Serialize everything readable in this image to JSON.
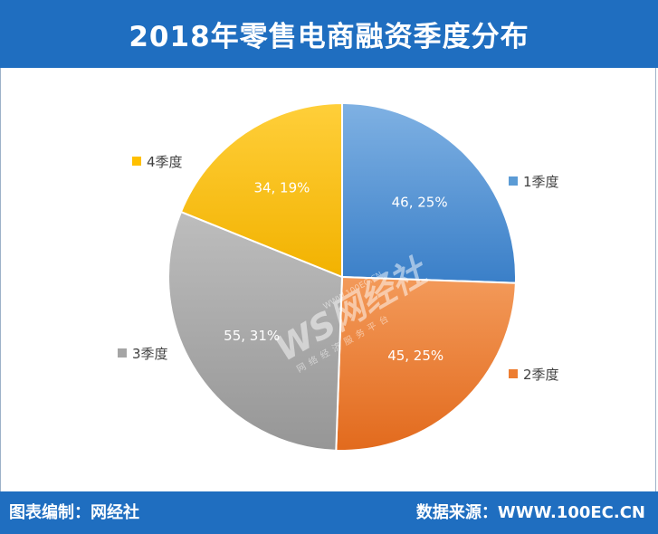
{
  "title": "2018年零售电商融资季度分布",
  "footer": {
    "left": "图表编制：网经社",
    "right": "数据来源：WWW.100EC.CN"
  },
  "watermark": {
    "logo": "WS网经社",
    "url": "WWW.100EC.CN",
    "tagline": "网络经济服务平台"
  },
  "colors": {
    "header_bg": "#1f6ec0",
    "q1": "#5b9bd5",
    "q2": "#ed7d31",
    "q3": "#a5a5a5",
    "q4": "#ffc000"
  },
  "chart_data": {
    "type": "pie",
    "title": "2018年零售电商融资季度分布",
    "categories": [
      "1季度",
      "2季度",
      "3季度",
      "4季度"
    ],
    "values": [
      46,
      45,
      55,
      34
    ],
    "percent_labels": [
      "25%",
      "25%",
      "31%",
      "19%"
    ],
    "data_labels": [
      "46, 25%",
      "45, 25%",
      "55, 31%",
      "34, 19%"
    ],
    "start_angle": "12 o'clock",
    "direction": "clockwise",
    "legend": "around pie"
  }
}
